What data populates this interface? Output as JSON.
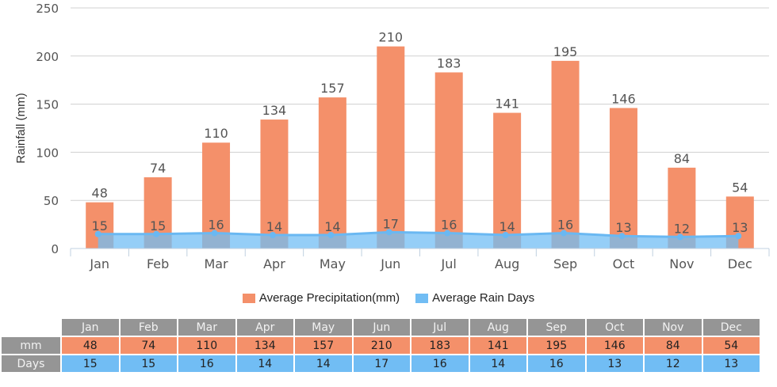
{
  "chart_data": {
    "type": "bar",
    "categories": [
      "Jan",
      "Feb",
      "Mar",
      "Apr",
      "May",
      "Jun",
      "Jul",
      "Aug",
      "Sep",
      "Oct",
      "Nov",
      "Dec"
    ],
    "series": [
      {
        "name": "Average Precipitation(mm)",
        "type": "bar",
        "color": "#f4906a",
        "values": [
          48,
          74,
          110,
          134,
          157,
          210,
          183,
          141,
          195,
          146,
          84,
          54
        ]
      },
      {
        "name": "Average Rain Days",
        "type": "area",
        "color": "#71bdf4",
        "values": [
          15,
          15,
          16,
          14,
          14,
          17,
          16,
          14,
          16,
          13,
          12,
          13
        ]
      }
    ],
    "title": "",
    "xlabel": "",
    "ylabel": "Rainfall (mm)",
    "ylim": [
      0,
      250
    ],
    "yticks": [
      0,
      50,
      100,
      150,
      200,
      250
    ],
    "grid": true,
    "legend_position": "bottom"
  },
  "table": {
    "row_labels": [
      "mm",
      "Days"
    ]
  }
}
